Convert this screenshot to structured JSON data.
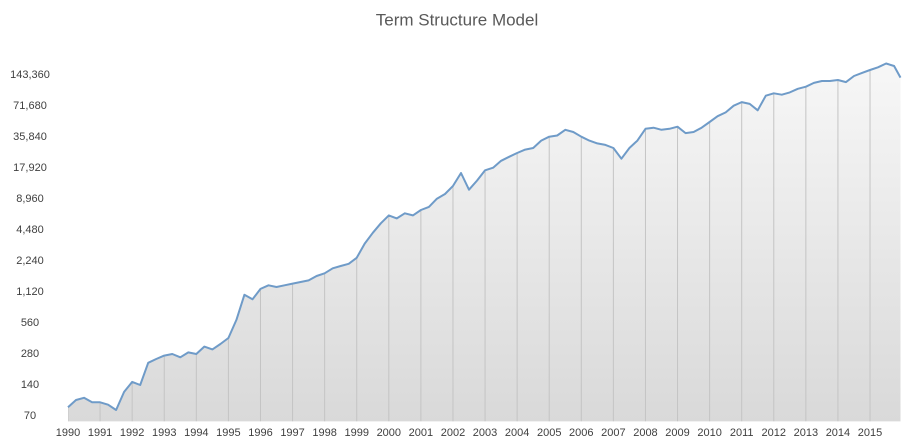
{
  "chart_data": {
    "type": "area",
    "title": "Term Structure Model",
    "color": "#6f9bc8",
    "log_y": true,
    "x": [
      1990.0,
      1990.25,
      1990.5,
      1990.75,
      1991.0,
      1991.25,
      1991.5,
      1991.75,
      1992.0,
      1992.25,
      1992.5,
      1992.75,
      1993.0,
      1993.25,
      1993.5,
      1993.75,
      1994.0,
      1994.25,
      1994.5,
      1994.75,
      1995.0,
      1995.25,
      1995.5,
      1995.75,
      1996.0,
      1996.25,
      1996.5,
      1996.75,
      1997.0,
      1997.25,
      1997.5,
      1997.75,
      1998.0,
      1998.25,
      1998.5,
      1998.75,
      1999.0,
      1999.25,
      1999.5,
      1999.75,
      2000.0,
      2000.25,
      2000.5,
      2000.75,
      2001.0,
      2001.25,
      2001.5,
      2001.75,
      2002.0,
      2002.25,
      2002.5,
      2002.75,
      2003.0,
      2003.25,
      2003.5,
      2003.75,
      2004.0,
      2004.25,
      2004.5,
      2004.75,
      2005.0,
      2005.25,
      2005.5,
      2005.75,
      2006.0,
      2006.25,
      2006.5,
      2006.75,
      2007.0,
      2007.25,
      2007.5,
      2007.75,
      2008.0,
      2008.25,
      2008.5,
      2008.75,
      2009.0,
      2009.25,
      2009.5,
      2009.75,
      2010.0,
      2010.25,
      2010.5,
      2010.75,
      2011.0,
      2011.25,
      2011.5,
      2011.75,
      2012.0,
      2012.25,
      2012.5,
      2012.75,
      2013.0,
      2013.25,
      2013.5,
      2013.75,
      2014.0,
      2014.25,
      2014.5,
      2014.75,
      2015.0,
      2015.25,
      2015.5,
      2015.75,
      2015.95
    ],
    "values": [
      85,
      100,
      105,
      95,
      95,
      90,
      80,
      120,
      150,
      140,
      230,
      250,
      270,
      280,
      260,
      290,
      280,
      330,
      310,
      350,
      400,
      600,
      1050,
      950,
      1200,
      1300,
      1250,
      1300,
      1350,
      1400,
      1450,
      1600,
      1700,
      1900,
      2000,
      2100,
      2400,
      3300,
      4200,
      5200,
      6200,
      5800,
      6500,
      6200,
      7000,
      7500,
      9000,
      10000,
      12000,
      16000,
      11000,
      13500,
      17000,
      18000,
      21000,
      23000,
      25000,
      27000,
      28000,
      33000,
      36000,
      37000,
      42000,
      40000,
      36000,
      33000,
      31000,
      30000,
      28000,
      22000,
      28000,
      33000,
      43000,
      44000,
      42000,
      43000,
      45000,
      39000,
      40000,
      44000,
      50000,
      57000,
      62000,
      72000,
      78000,
      75000,
      65000,
      90000,
      95000,
      92000,
      97000,
      105000,
      110000,
      120000,
      125000,
      125000,
      128000,
      122000,
      140000,
      150000,
      160000,
      170000,
      185000,
      175000,
      135000
    ],
    "xlim": [
      1990,
      2015.95
    ],
    "xticks": [
      1990,
      1991,
      1992,
      1993,
      1994,
      1995,
      1996,
      1997,
      1998,
      1999,
      2000,
      2001,
      2002,
      2003,
      2004,
      2005,
      2006,
      2007,
      2008,
      2009,
      2010,
      2011,
      2012,
      2013,
      2014,
      2015
    ],
    "ylim": [
      62,
      200000
    ],
    "yticks": [
      70,
      140,
      280,
      560,
      {
        "value": 1120,
        "label": "1,120"
      },
      {
        "value": 2240,
        "label": "2,240"
      },
      {
        "value": 4480,
        "label": "4,480"
      },
      {
        "value": 8960,
        "label": "8,960"
      },
      {
        "value": 17920,
        "label": "17,920"
      },
      {
        "value": 35840,
        "label": "35,840"
      },
      {
        "value": 71680,
        "label": "71,680"
      },
      {
        "value": 143360,
        "label": "143,360"
      }
    ]
  }
}
